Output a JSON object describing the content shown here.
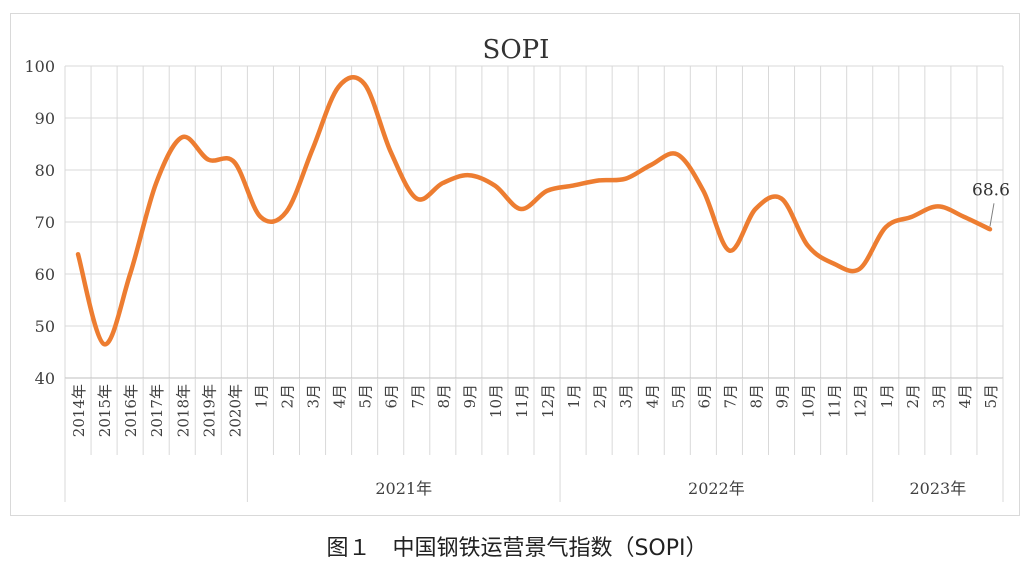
{
  "caption": "图１　中国钢铁运营景气指数（SOPI）",
  "chart_data": {
    "type": "line",
    "title": "SOPI",
    "xlabel": "",
    "ylabel": "",
    "ylim": [
      40,
      100
    ],
    "yticks": [
      40,
      50,
      60,
      70,
      80,
      90,
      100
    ],
    "grid": true,
    "line_color": "#ED7D31",
    "categories": [
      "2014年",
      "2015年",
      "2016年",
      "2017年",
      "2018年",
      "2019年",
      "2020年",
      "1月",
      "2月",
      "3月",
      "4月",
      "5月",
      "6月",
      "7月",
      "8月",
      "9月",
      "10月",
      "11月",
      "12月",
      "1月",
      "2月",
      "3月",
      "4月",
      "5月",
      "6月",
      "7月",
      "8月",
      "9月",
      "10月",
      "11月",
      "12月",
      "1月",
      "2月",
      "3月",
      "4月",
      "5月"
    ],
    "groups": [
      {
        "label": "2021年",
        "start": 7,
        "end": 18
      },
      {
        "label": "2022年",
        "start": 19,
        "end": 30
      },
      {
        "label": "2023年",
        "start": 31,
        "end": 35
      }
    ],
    "series": [
      {
        "values": [
          63.8,
          46.5,
          60.0,
          77.5,
          86.3,
          82.0,
          81.5,
          71.0,
          72.0,
          84.0,
          96.0,
          96.5,
          83.5,
          74.5,
          77.5,
          79.0,
          77.0,
          72.5,
          76.0,
          77.0,
          78.0,
          78.3,
          81.0,
          83.0,
          76.0,
          64.5,
          72.5,
          74.5,
          65.5,
          62.0,
          61.0,
          69.0,
          71.0,
          73.0,
          71.0,
          68.6
        ]
      }
    ],
    "annotations": [
      {
        "index": 35,
        "text": "68.6"
      }
    ]
  }
}
